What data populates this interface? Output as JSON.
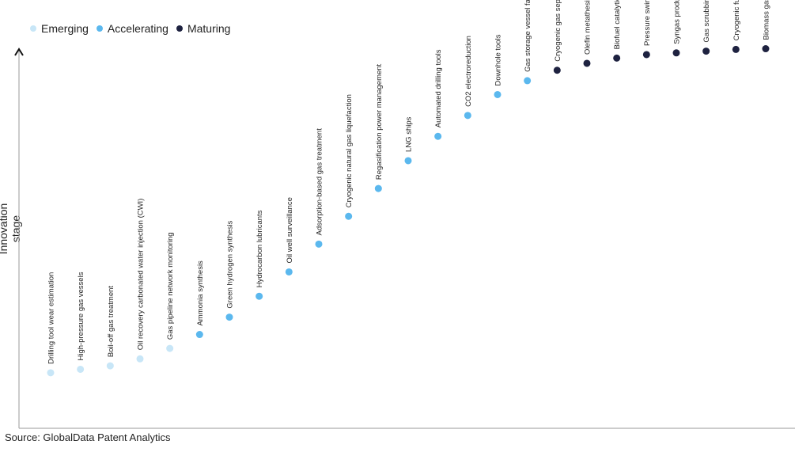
{
  "colors": {
    "Emerging": "#c8e6f7",
    "Accelerating": "#5bb8ee",
    "Maturing": "#1e2240"
  },
  "legend": [
    {
      "label": "Emerging",
      "color": "#c8e6f7"
    },
    {
      "label": "Accelerating",
      "color": "#5bb8ee"
    },
    {
      "label": "Maturing",
      "color": "#1e2240"
    }
  ],
  "footer": {
    "source": "Source: GlobalData Patent Analytics"
  },
  "chart_data": {
    "type": "scatter",
    "title": "",
    "xlabel": "",
    "ylabel": "Innovation stage",
    "grid": false,
    "legend_position": "top-left",
    "ylim": [
      0,
      100
    ],
    "points": [
      {
        "label": "Drilling tool wear estimation",
        "stage": "Emerging",
        "y": 8
      },
      {
        "label": "High-pressure gas vessels",
        "stage": "Emerging",
        "y": 9
      },
      {
        "label": "Boil-off gas treatment",
        "stage": "Emerging",
        "y": 10
      },
      {
        "label": "Oil recovery carbonated water injection (CWI)",
        "stage": "Emerging",
        "y": 12
      },
      {
        "label": "Gas pipeline network monitoring",
        "stage": "Emerging",
        "y": 15
      },
      {
        "label": "Ammonia synthesis",
        "stage": "Accelerating",
        "y": 19
      },
      {
        "label": "Green hydrogen synthesis",
        "stage": "Accelerating",
        "y": 24
      },
      {
        "label": "Hydrocarbon lubricants",
        "stage": "Accelerating",
        "y": 30
      },
      {
        "label": "Oil well surveillance",
        "stage": "Accelerating",
        "y": 37
      },
      {
        "label": "Adsorption-based gas treatment",
        "stage": "Accelerating",
        "y": 45
      },
      {
        "label": "Cryogenic natural gas liquefaction",
        "stage": "Accelerating",
        "y": 53
      },
      {
        "label": "Regasification power management",
        "stage": "Accelerating",
        "y": 61
      },
      {
        "label": "LNG ships",
        "stage": "Accelerating",
        "y": 69
      },
      {
        "label": "Automated drilling tools",
        "stage": "Accelerating",
        "y": 76
      },
      {
        "label": "CO2 electroreduction",
        "stage": "Accelerating",
        "y": 82
      },
      {
        "label": "Downhole tools",
        "stage": "Accelerating",
        "y": 88
      },
      {
        "label": "Gas storage vessel fabrication",
        "stage": "Accelerating",
        "y": 92
      },
      {
        "label": "Cryogenic gas separation",
        "stage": "Maturing",
        "y": 95
      },
      {
        "label": "Olefin metathesis catalysts",
        "stage": "Maturing",
        "y": 97
      },
      {
        "label": "Biofuel catalytic cracking",
        "stage": "Maturing",
        "y": 98.5
      },
      {
        "label": "Pressure swing adsorption",
        "stage": "Maturing",
        "y": 99.5
      },
      {
        "label": "Syngas production",
        "stage": "Maturing",
        "y": 100
      },
      {
        "label": "Gas scrubbing",
        "stage": "Maturing",
        "y": 100.5
      },
      {
        "label": "Cryogenic fuel storage",
        "stage": "Maturing",
        "y": 101
      },
      {
        "label": "Biomass gasification",
        "stage": "Maturing",
        "y": 101.2
      }
    ]
  }
}
